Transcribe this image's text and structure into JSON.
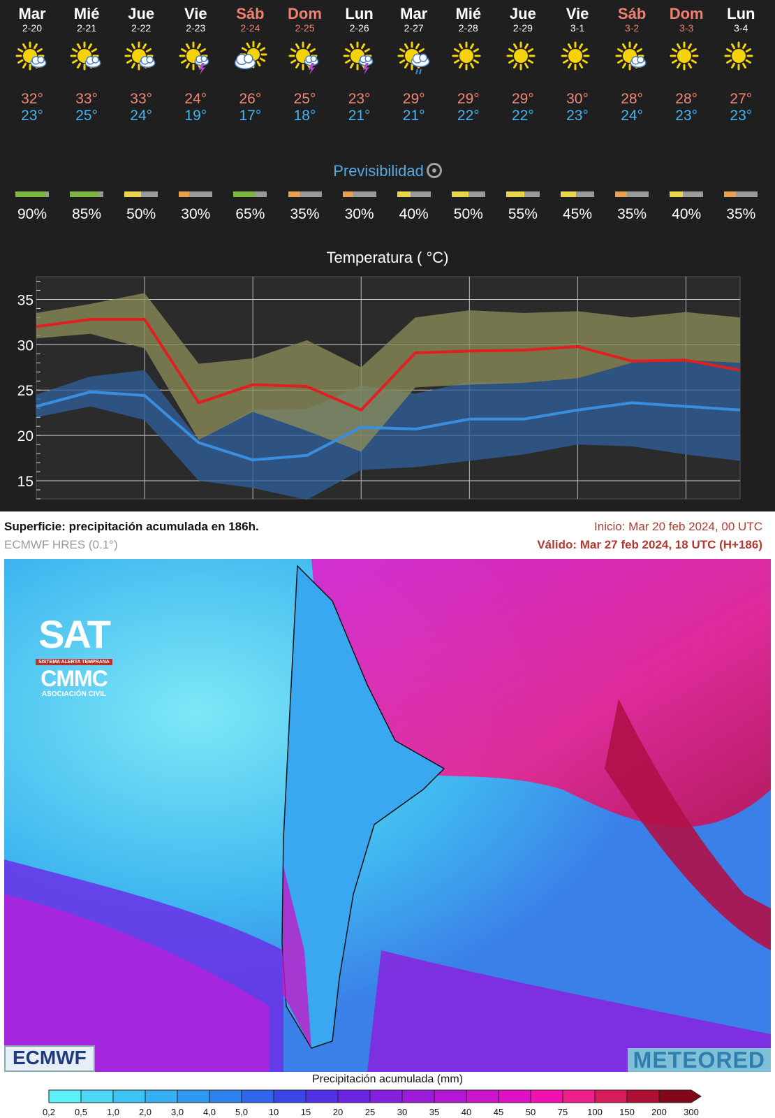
{
  "days": [
    {
      "name": "Mar",
      "date": "2-20",
      "icon": "sun-cloud-icon",
      "tmax": "32°",
      "tmin": "23°",
      "weekend": false
    },
    {
      "name": "Mié",
      "date": "2-21",
      "icon": "sun-cloud-icon",
      "tmax": "33°",
      "tmin": "25°",
      "weekend": false
    },
    {
      "name": "Jue",
      "date": "2-22",
      "icon": "sun-cloud-icon",
      "tmax": "33°",
      "tmin": "24°",
      "weekend": false
    },
    {
      "name": "Vie",
      "date": "2-23",
      "icon": "sun-storm-icon",
      "tmax": "24°",
      "tmin": "19°",
      "weekend": false
    },
    {
      "name": "Sáb",
      "date": "2-24",
      "icon": "cloud-sun-icon",
      "tmax": "26°",
      "tmin": "17°",
      "weekend": true
    },
    {
      "name": "Dom",
      "date": "2-25",
      "icon": "sun-storm-icon",
      "tmax": "25°",
      "tmin": "18°",
      "weekend": true
    },
    {
      "name": "Lun",
      "date": "2-26",
      "icon": "sun-storm-icon",
      "tmax": "23°",
      "tmin": "21°",
      "weekend": false
    },
    {
      "name": "Mar",
      "date": "2-27",
      "icon": "sun-rain-icon",
      "tmax": "29°",
      "tmin": "21°",
      "weekend": false
    },
    {
      "name": "Mié",
      "date": "2-28",
      "icon": "sun-icon",
      "tmax": "29°",
      "tmin": "22°",
      "weekend": false
    },
    {
      "name": "Jue",
      "date": "2-29",
      "icon": "sun-icon",
      "tmax": "29°",
      "tmin": "22°",
      "weekend": false
    },
    {
      "name": "Vie",
      "date": "3-1",
      "icon": "sun-icon",
      "tmax": "30°",
      "tmin": "23°",
      "weekend": false
    },
    {
      "name": "Sáb",
      "date": "3-2",
      "icon": "sun-cloud-icon",
      "tmax": "28°",
      "tmin": "24°",
      "weekend": true
    },
    {
      "name": "Dom",
      "date": "3-3",
      "icon": "sun-icon",
      "tmax": "28°",
      "tmin": "23°",
      "weekend": true
    },
    {
      "name": "Lun",
      "date": "3-4",
      "icon": "sun-icon",
      "tmax": "27°",
      "tmin": "23°",
      "weekend": false
    }
  ],
  "predictability": {
    "title": "Previsibilidad",
    "values": [
      "90%",
      "85%",
      "50%",
      "30%",
      "65%",
      "35%",
      "30%",
      "40%",
      "50%",
      "55%",
      "45%",
      "35%",
      "40%",
      "35%"
    ],
    "fraction": [
      0.9,
      0.85,
      0.5,
      0.3,
      0.65,
      0.35,
      0.3,
      0.4,
      0.5,
      0.55,
      0.45,
      0.35,
      0.4,
      0.35
    ]
  },
  "colors": {
    "max_line": "#e02020",
    "min_line": "#3a8ee0",
    "max_band": "#8a8c58",
    "min_band": "#2f5f98",
    "weekend": "#f08070",
    "good": "#7cb342",
    "medium": "#e8d44d",
    "low": "#e8a050"
  },
  "chart_data": {
    "type": "line",
    "title": "Temperatura ( °C)",
    "x": [
      "2-20",
      "2-21",
      "2-22",
      "2-23",
      "2-24",
      "2-25",
      "2-26",
      "2-27",
      "2-28",
      "2-29",
      "3-1",
      "3-2",
      "3-3",
      "3-4"
    ],
    "yticks": [
      "35",
      "30",
      "25",
      "20",
      "15"
    ],
    "ylim": [
      13,
      37.5
    ],
    "grid": true,
    "series": [
      {
        "role": "max",
        "values": [
          32,
          32.8,
          32.8,
          23.6,
          25.6,
          25.4,
          22.8,
          29.1,
          29.3,
          29.4,
          29.8,
          28.2,
          28.3,
          27.2
        ]
      },
      {
        "role": "min",
        "values": [
          23.2,
          24.8,
          24.4,
          19.2,
          17.3,
          17.8,
          20.9,
          20.7,
          21.8,
          21.8,
          22.8,
          23.6,
          23.2,
          22.8
        ]
      },
      {
        "role": "max-range",
        "upper": [
          33.5,
          34.5,
          35.7,
          27.9,
          28.5,
          30.5,
          27.5,
          33,
          33.8,
          33.5,
          33.7,
          33,
          33.6,
          33
        ],
        "lower": [
          30.7,
          31.2,
          29.6,
          19.5,
          22.6,
          20.5,
          18.2,
          25.3,
          25.6,
          25.8,
          26.3,
          28,
          28.3,
          28
        ]
      },
      {
        "role": "min-range",
        "upper": [
          24.5,
          26.5,
          27.2,
          19.5,
          22.8,
          22.9,
          25.5,
          24.6,
          25.9,
          25.8,
          26.3,
          28,
          28.3,
          28
        ],
        "lower": [
          22,
          23.2,
          21.7,
          15,
          14.2,
          12.9,
          16.2,
          16.5,
          17.2,
          17.9,
          19,
          18.8,
          17.9,
          17.2
        ]
      }
    ]
  },
  "map": {
    "title": "Superficie: precipitación acumulada en 186h.",
    "model": "ECMWF HRES (0.1°)",
    "inicio": "Inicio: Mar 20 feb 2024, 00 UTC",
    "valido": "Válido: Mar 27 feb 2024, 18 UTC (H+186)",
    "logo_sat": "SAT",
    "logo_band": "SISTEMA ALERTA TEMPRANA",
    "logo_cmmc": "CMMC",
    "logo_asoc": "ASOCIACIÓN CIVIL",
    "ecmwf": "ECMWF",
    "meteored": "METEORED"
  },
  "colorbar": {
    "title": "Precipitación acumulada (mm)",
    "labels": [
      "0,2",
      "0,5",
      "1,0",
      "2,0",
      "3,0",
      "4,0",
      "5,0",
      "10",
      "15",
      "20",
      "25",
      "30",
      "35",
      "40",
      "45",
      "50",
      "75",
      "100",
      "150",
      "200",
      "300"
    ],
    "colors": [
      "#5ef0f8",
      "#4ed8f6",
      "#3ec4f4",
      "#35aef2",
      "#3098f0",
      "#2d82ee",
      "#2f66ec",
      "#3a46e8",
      "#5230e6",
      "#6a24e2",
      "#8420de",
      "#9c1cda",
      "#b418d4",
      "#cc14cc",
      "#e010c4",
      "#f210b0",
      "#f0208a",
      "#d81c5a",
      "#b01034",
      "#800818"
    ]
  }
}
